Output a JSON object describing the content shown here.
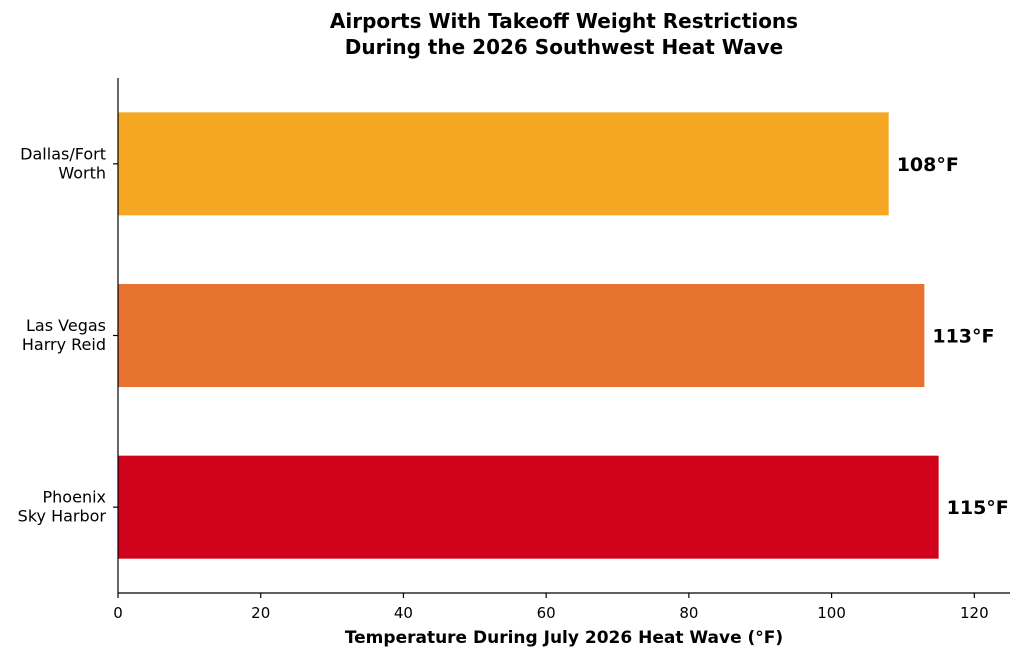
{
  "chart_data": {
    "type": "bar",
    "orientation": "horizontal",
    "title_lines": [
      "Airports With Takeoff Weight Restrictions",
      "During the 2026 Southwest Heat Wave"
    ],
    "xlabel": "Temperature During July 2026 Heat Wave (°F)",
    "ylabel": "",
    "xlim": [
      0,
      125
    ],
    "xticks": [
      0,
      20,
      40,
      60,
      80,
      100,
      120
    ],
    "grid": false,
    "legend": "none",
    "categories": [
      {
        "label_lines": [
          "Dallas/Fort",
          "Worth"
        ],
        "value": 108,
        "value_label": "108°F",
        "color": "#F5A623"
      },
      {
        "label_lines": [
          "Las Vegas",
          "Harry Reid"
        ],
        "value": 113,
        "value_label": "113°F",
        "color": "#E87330"
      },
      {
        "label_lines": [
          "Phoenix",
          "Sky Harbor"
        ],
        "value": 115,
        "value_label": "115°F",
        "color": "#D0021B"
      }
    ]
  }
}
